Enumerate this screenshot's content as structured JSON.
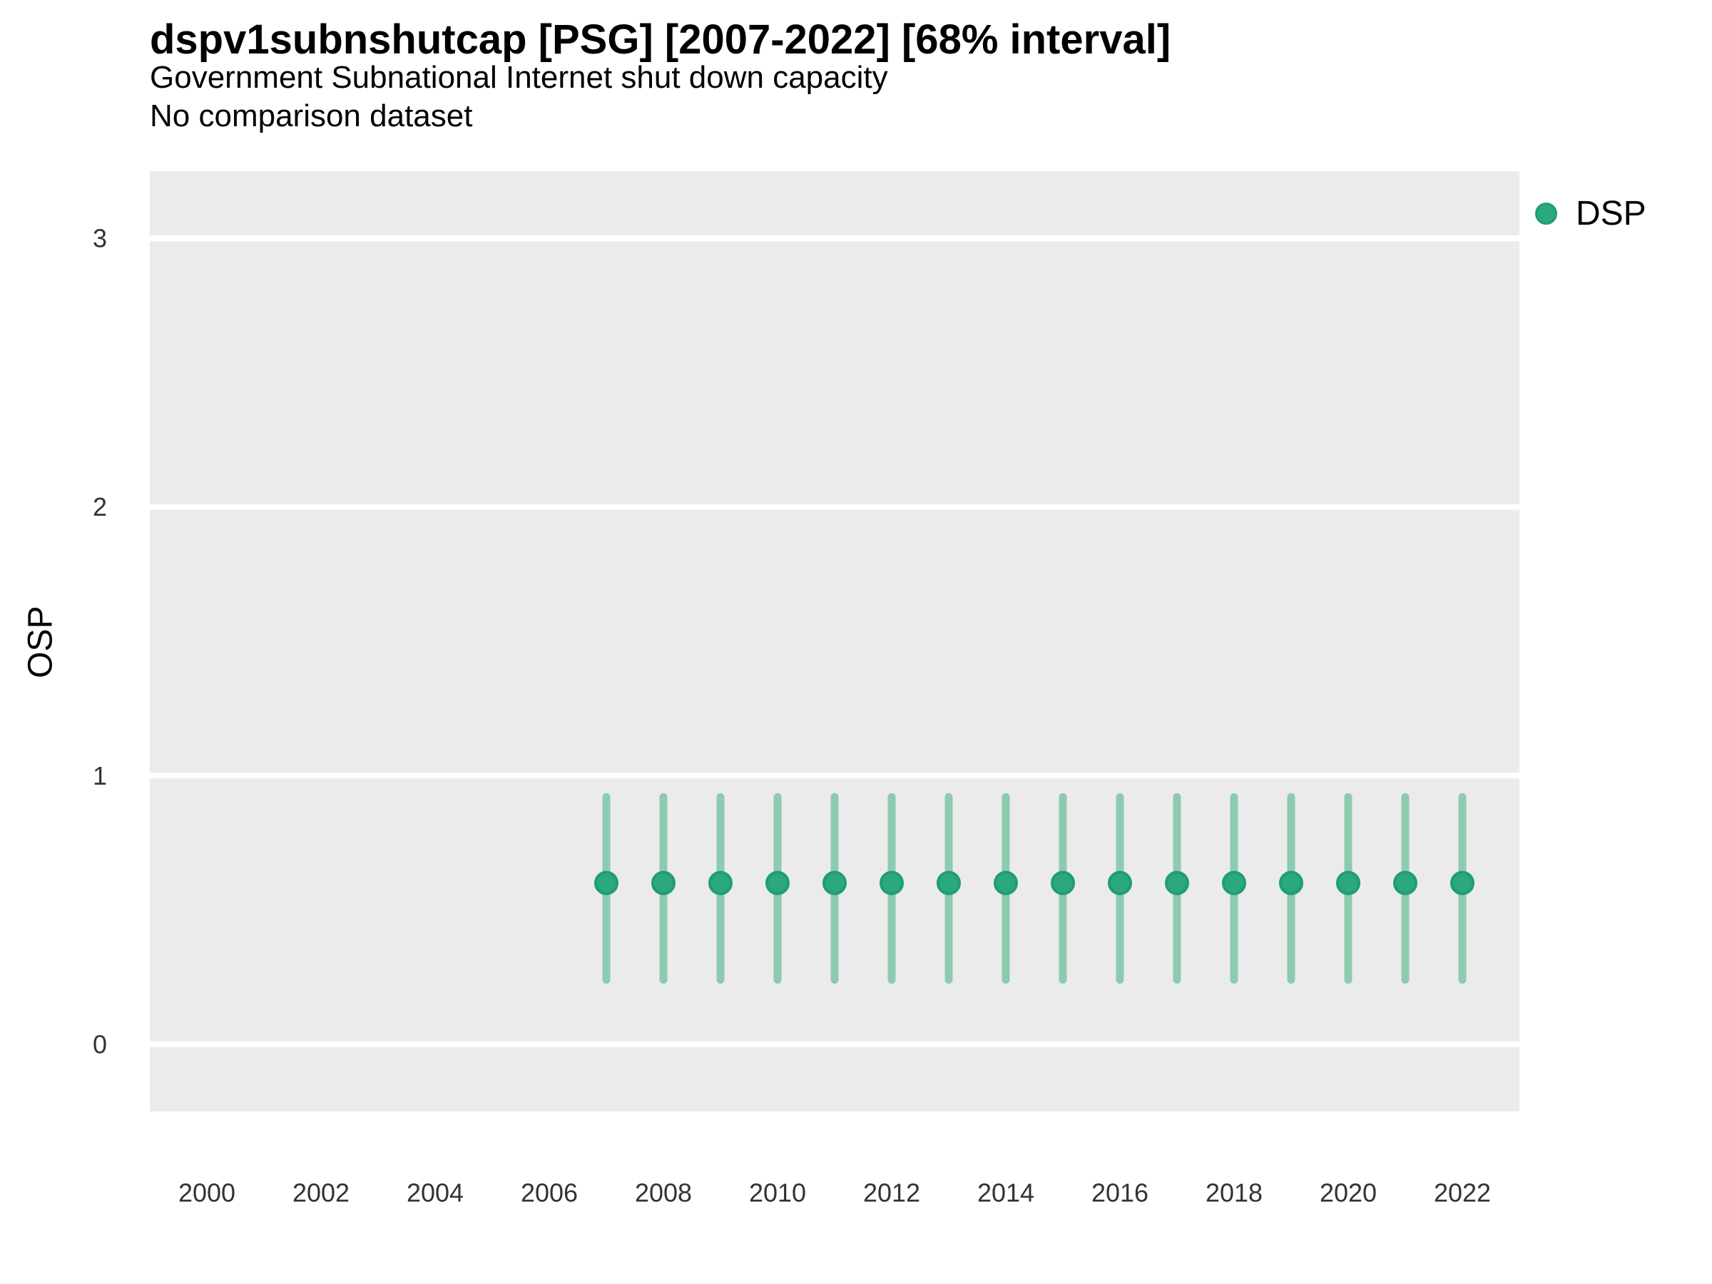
{
  "header": {
    "title": "dspv1subnshutcap [PSG] [2007-2022] [68% interval]",
    "subtitle": "Government Subnational Internet shut down capacity",
    "note": "No comparison dataset"
  },
  "legend": {
    "position": "right-top",
    "items": [
      {
        "label": "DSP",
        "color": "#2ba87d",
        "edge_color": "#1f9e71"
      }
    ]
  },
  "chart_data": {
    "type": "scatter",
    "title": "dspv1subnshutcap [PSG] [2007-2022] [68% interval]",
    "subtitle": "Government Subnational Internet shut down capacity",
    "note": "No comparison dataset",
    "xlabel": "",
    "ylabel": "OSP",
    "xlim": [
      1999,
      2023
    ],
    "ylim": [
      -0.25,
      3.25
    ],
    "x_ticks": [
      2000,
      2002,
      2004,
      2006,
      2008,
      2010,
      2012,
      2014,
      2016,
      2018,
      2020,
      2022
    ],
    "y_ticks": [
      0,
      1,
      2,
      3
    ],
    "grid": "horizontal-major-only",
    "panel_bg": "#ebebeb",
    "gridline_color": "#ffffff",
    "tick_label_color": "#333333",
    "interval_level": "68%",
    "series": [
      {
        "name": "DSP",
        "point_color": "#2ba87d",
        "point_edge_color": "#1f9e71",
        "interval_color": "#8ccbb0",
        "x": [
          2007,
          2008,
          2009,
          2010,
          2011,
          2012,
          2013,
          2014,
          2015,
          2016,
          2017,
          2018,
          2019,
          2020,
          2021,
          2022
        ],
        "y": [
          0.6,
          0.6,
          0.6,
          0.6,
          0.6,
          0.6,
          0.6,
          0.6,
          0.6,
          0.6,
          0.6,
          0.6,
          0.6,
          0.6,
          0.6,
          0.6
        ],
        "y_low": [
          0.24,
          0.24,
          0.24,
          0.24,
          0.24,
          0.24,
          0.24,
          0.24,
          0.24,
          0.24,
          0.24,
          0.24,
          0.24,
          0.24,
          0.24,
          0.24
        ],
        "y_high": [
          0.92,
          0.92,
          0.92,
          0.92,
          0.92,
          0.92,
          0.92,
          0.92,
          0.92,
          0.92,
          0.92,
          0.92,
          0.92,
          0.92,
          0.92,
          0.92
        ]
      }
    ]
  }
}
